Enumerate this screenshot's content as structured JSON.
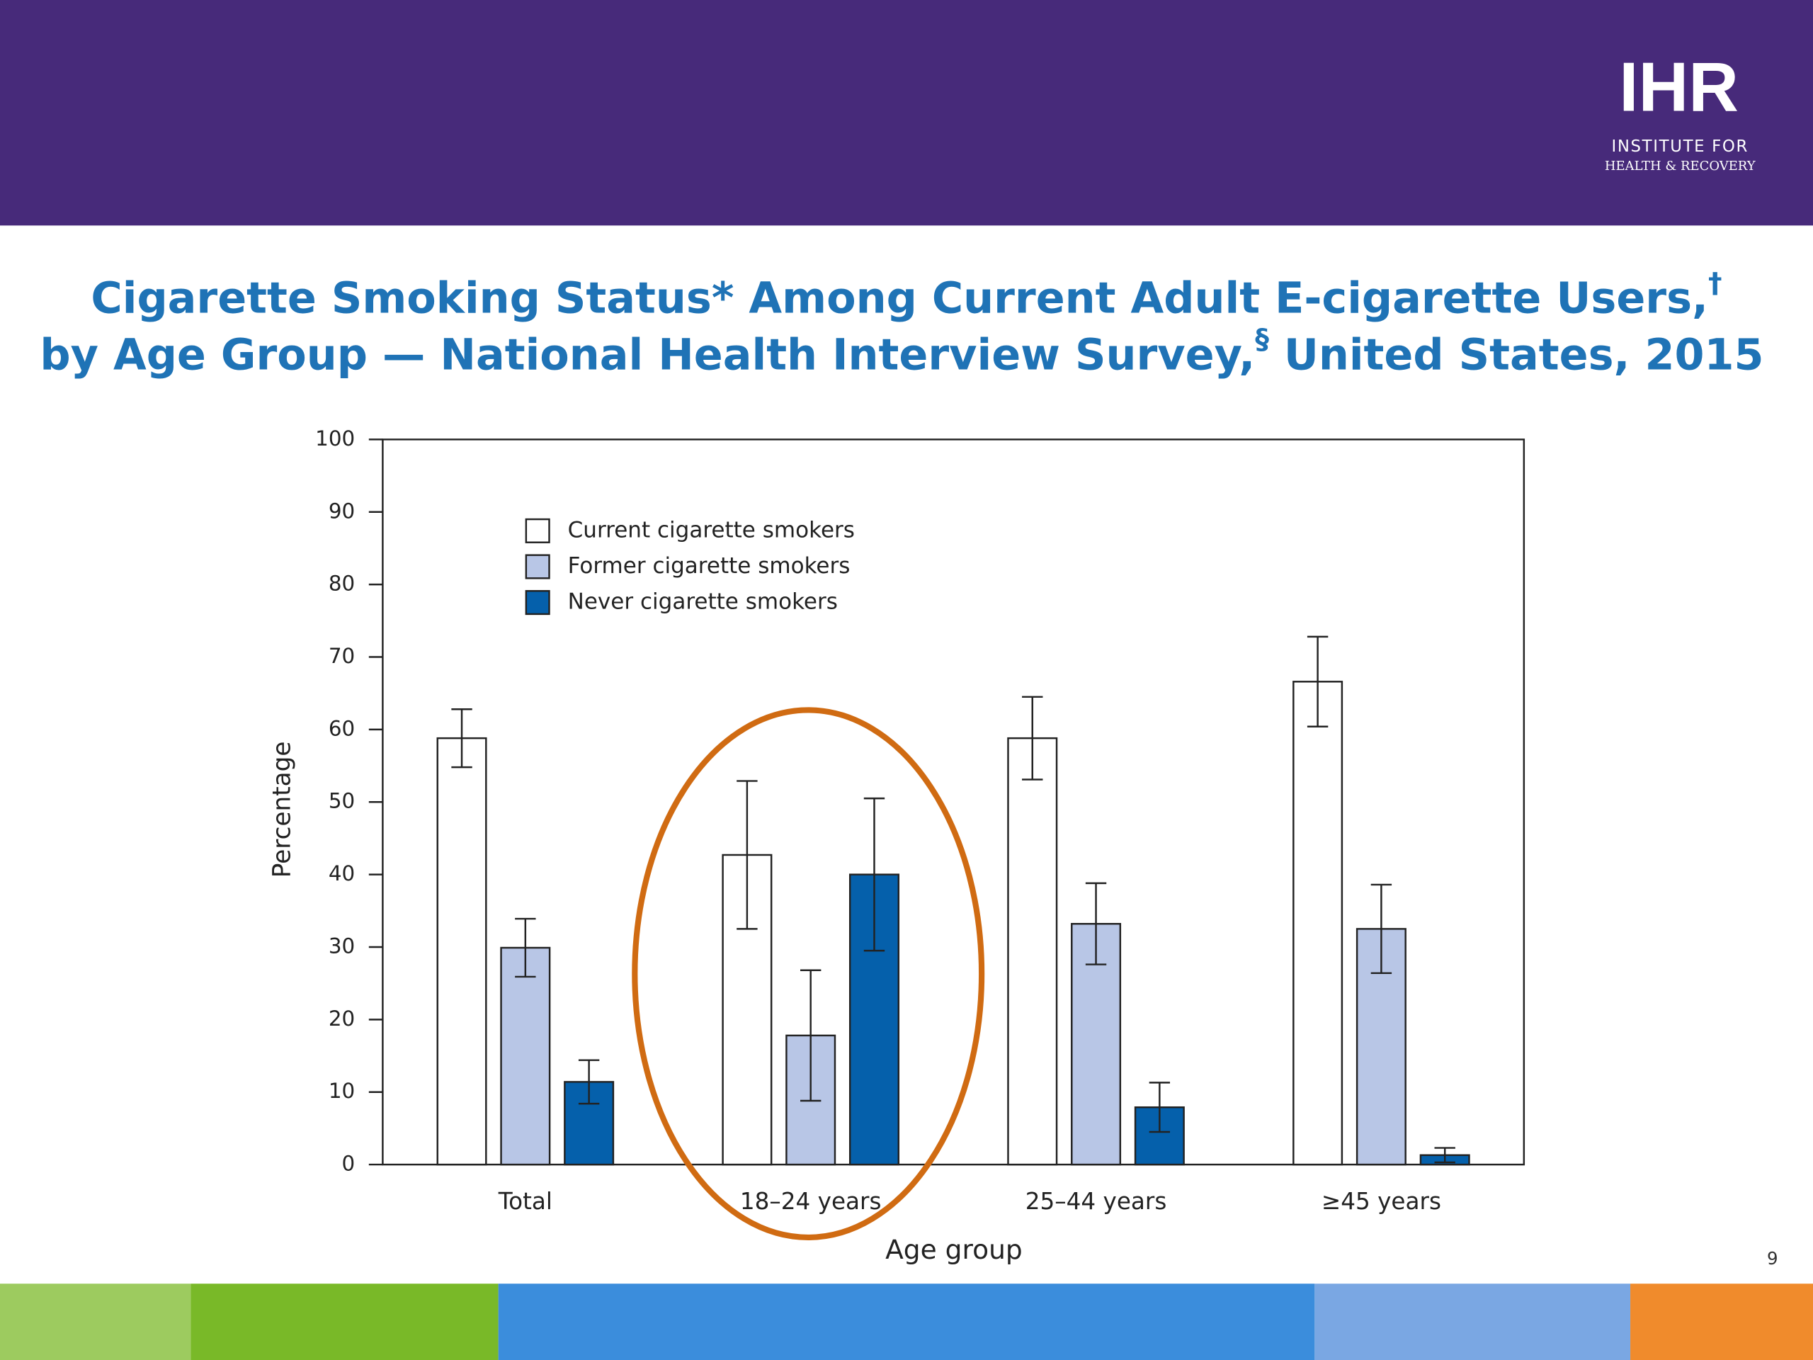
{
  "logo": {
    "mark": "IHR",
    "line1": "INSTITUTE FOR",
    "line2": "HEALTH & RECOVERY"
  },
  "page_number": "9",
  "chart_data": {
    "type": "bar",
    "title": {
      "line1": "Cigarette Smoking Status* Among Current Adult E-cigarette Users,",
      "line1_sup": "†",
      "line2a": "by Age Group — National Health Interview Survey,",
      "line2_sup": "§",
      "line2b": " United States, 2015"
    },
    "x_label": "Age group",
    "y_label": "Percentage",
    "categories": [
      "Total",
      "18–24 years",
      "25–44 years",
      "≥45 years"
    ],
    "series": [
      {
        "name": "Current cigarette smokers",
        "color": "#ffffff",
        "values": [
          58.8,
          42.7,
          58.8,
          66.6
        ],
        "errors": [
          4.0,
          10.2,
          5.7,
          6.2
        ]
      },
      {
        "name": "Former cigarette smokers",
        "color": "#b8c6e6",
        "values": [
          29.9,
          17.8,
          33.2,
          32.5
        ],
        "errors": [
          4.0,
          9.0,
          5.6,
          6.1
        ]
      },
      {
        "name": "Never cigarette smokers",
        "color": "#0560ab",
        "values": [
          11.4,
          40.0,
          7.9,
          1.3
        ],
        "errors": [
          3.0,
          10.5,
          3.4,
          1.0
        ]
      }
    ],
    "ylim": [
      0,
      100
    ],
    "yticks": [
      0,
      10,
      20,
      30,
      40,
      50,
      60,
      70,
      80,
      90,
      100
    ],
    "legend": "upper left"
  }
}
